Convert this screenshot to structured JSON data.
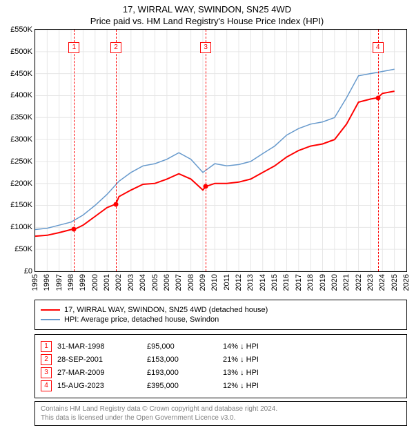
{
  "title_line1": "17, WIRRAL WAY, SWINDON, SN25 4WD",
  "title_line2": "Price paid vs. HM Land Registry's House Price Index (HPI)",
  "chart": {
    "type": "line",
    "xlim": [
      1995,
      2026
    ],
    "ylim": [
      0,
      550000
    ],
    "ytick_step": 50000,
    "ytick_labels": [
      "£0",
      "£50K",
      "£100K",
      "£150K",
      "£200K",
      "£250K",
      "£300K",
      "£350K",
      "£400K",
      "£450K",
      "£500K",
      "£550K"
    ],
    "xticks": [
      1995,
      1996,
      1997,
      1998,
      1999,
      2000,
      2001,
      2002,
      2003,
      2004,
      2005,
      2006,
      2007,
      2008,
      2009,
      2010,
      2011,
      2012,
      2013,
      2014,
      2015,
      2016,
      2017,
      2018,
      2019,
      2020,
      2021,
      2022,
      2023,
      2024,
      2025,
      2026
    ],
    "grid_color": "#e6e6e6",
    "background_color": "#ffffff",
    "series": [
      {
        "name": "price_paid",
        "label": "17, WIRRAL WAY, SWINDON, SN25 4WD (detached house)",
        "color": "#ff0000",
        "line_width": 2,
        "x": [
          1995,
          1996,
          1997,
          1998,
          1998.25,
          1999,
          2000,
          2001,
          2001.74,
          2002,
          2003,
          2004,
          2005,
          2006,
          2007,
          2008,
          2009,
          2009.24,
          2010,
          2011,
          2012,
          2013,
          2014,
          2015,
          2016,
          2017,
          2018,
          2019,
          2020,
          2021,
          2022,
          2023,
          2023.6,
          2024,
          2025
        ],
        "y": [
          80000,
          82000,
          88000,
          95000,
          95000,
          105000,
          125000,
          145000,
          153000,
          170000,
          185000,
          198000,
          200000,
          210000,
          222000,
          210000,
          185000,
          193000,
          200000,
          200000,
          203000,
          210000,
          225000,
          240000,
          260000,
          275000,
          285000,
          290000,
          300000,
          335000,
          385000,
          392000,
          395000,
          405000,
          410000
        ]
      },
      {
        "name": "hpi",
        "label": "HPI: Average price, detached house, Swindon",
        "color": "#6699cc",
        "line_width": 1.5,
        "x": [
          1995,
          1996,
          1997,
          1998,
          1999,
          2000,
          2001,
          2002,
          2003,
          2004,
          2005,
          2006,
          2007,
          2008,
          2009,
          2010,
          2011,
          2012,
          2013,
          2014,
          2015,
          2016,
          2017,
          2018,
          2019,
          2020,
          2021,
          2022,
          2023,
          2024,
          2025
        ],
        "y": [
          95000,
          98000,
          105000,
          112000,
          128000,
          150000,
          175000,
          205000,
          225000,
          240000,
          245000,
          255000,
          270000,
          255000,
          225000,
          245000,
          240000,
          243000,
          250000,
          268000,
          285000,
          310000,
          325000,
          335000,
          340000,
          350000,
          395000,
          445000,
          450000,
          455000,
          460000
        ]
      }
    ],
    "markers": [
      {
        "n": "1",
        "x": 1998.25,
        "y": 95000
      },
      {
        "n": "2",
        "x": 2001.74,
        "y": 153000
      },
      {
        "n": "3",
        "x": 2009.24,
        "y": 193000
      },
      {
        "n": "4",
        "x": 2023.62,
        "y": 395000
      }
    ]
  },
  "legend": {
    "items": [
      {
        "color": "#ff0000",
        "label": "17, WIRRAL WAY, SWINDON, SN25 4WD (detached house)"
      },
      {
        "color": "#6699cc",
        "label": "HPI: Average price, detached house, Swindon"
      }
    ]
  },
  "sales": [
    {
      "n": "1",
      "date": "31-MAR-1998",
      "price": "£95,000",
      "delta": "14% ↓ HPI"
    },
    {
      "n": "2",
      "date": "28-SEP-2001",
      "price": "£153,000",
      "delta": "21% ↓ HPI"
    },
    {
      "n": "3",
      "date": "27-MAR-2009",
      "price": "£193,000",
      "delta": "13% ↓ HPI"
    },
    {
      "n": "4",
      "date": "15-AUG-2023",
      "price": "£395,000",
      "delta": "12% ↓ HPI"
    }
  ],
  "footer_line1": "Contains HM Land Registry data © Crown copyright and database right 2024.",
  "footer_line2": "This data is licensed under the Open Government Licence v3.0."
}
